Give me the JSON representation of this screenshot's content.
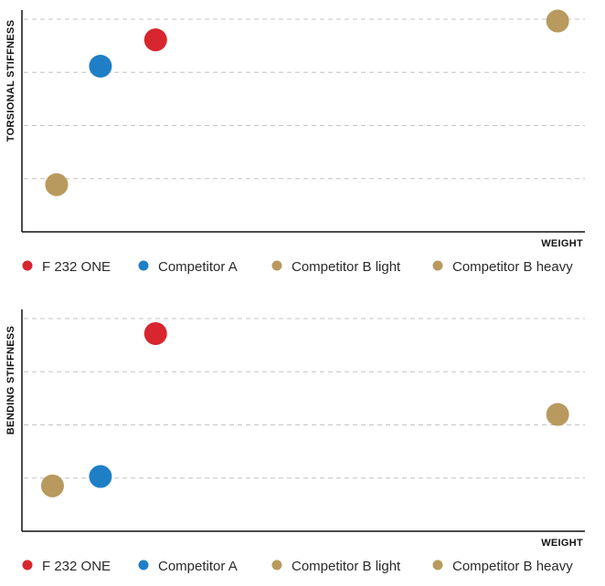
{
  "chart_data": [
    {
      "type": "scatter",
      "title": "",
      "xlabel": "WEIGHT",
      "ylabel": "TORSIONAL STIFFNESS",
      "xlim": [
        0,
        100
      ],
      "ylim": [
        0,
        100
      ],
      "grid": true,
      "legend_position": "bottom",
      "series": [
        {
          "name": "F 232 ONE",
          "color": "#d7262e",
          "points": [
            {
              "x": 21.5,
              "y": 89
            }
          ]
        },
        {
          "name": "Competitor A",
          "color": "#1f7fc6",
          "points": [
            {
              "x": 10.8,
              "y": 75
            }
          ]
        },
        {
          "name": "Competitor B light",
          "color": "#b89a5e",
          "points": [
            {
              "x": 2.3,
              "y": 12
            }
          ]
        },
        {
          "name": "Competitor B heavy",
          "color": "#b89a5e",
          "points": [
            {
              "x": 99.5,
              "y": 99
            }
          ]
        }
      ]
    },
    {
      "type": "scatter",
      "title": "",
      "xlabel": "WEIGHT",
      "ylabel": "BENDING STIFFNESS",
      "xlim": [
        0,
        100
      ],
      "ylim": [
        0,
        100
      ],
      "grid": true,
      "legend_position": "bottom",
      "series": [
        {
          "name": "F 232 ONE",
          "color": "#d7262e",
          "points": [
            {
              "x": 21.5,
              "y": 92
            }
          ]
        },
        {
          "name": "Competitor A",
          "color": "#1f7fc6",
          "points": [
            {
              "x": 10.8,
              "y": 16
            }
          ]
        },
        {
          "name": "Competitor B light",
          "color": "#b89a5e",
          "points": [
            {
              "x": 1.5,
              "y": 11
            }
          ]
        },
        {
          "name": "Competitor B heavy",
          "color": "#b89a5e",
          "points": [
            {
              "x": 99.5,
              "y": 49
            }
          ]
        }
      ]
    }
  ]
}
